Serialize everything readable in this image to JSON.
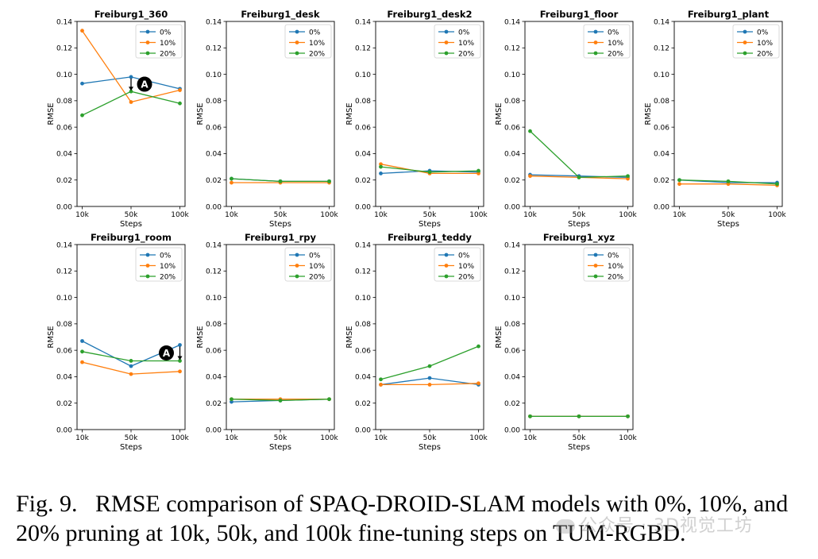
{
  "chart_data": [
    {
      "type": "line",
      "title": "Freiburg1_360",
      "xlabel": "Steps",
      "ylabel": "RMSE",
      "categories": [
        "10k",
        "50k",
        "100k"
      ],
      "ylim": [
        0,
        0.14
      ],
      "yticks": [
        "0.00",
        "0.02",
        "0.04",
        "0.06",
        "0.08",
        "0.10",
        "0.12",
        "0.14"
      ],
      "legend": "top-right",
      "series": [
        {
          "name": "0%",
          "color": "#1f77b4",
          "values": [
            0.093,
            0.098,
            0.089
          ]
        },
        {
          "name": "10%",
          "color": "#ff7f0e",
          "values": [
            0.133,
            0.079,
            0.088
          ]
        },
        {
          "name": "20%",
          "color": "#2ca02c",
          "values": [
            0.069,
            0.087,
            0.078
          ]
        }
      ],
      "annotation": {
        "label": "A",
        "category": "50k",
        "from": 0.098,
        "to": 0.087
      }
    },
    {
      "type": "line",
      "title": "Freiburg1_desk",
      "xlabel": "Steps",
      "ylabel": "RMSE",
      "categories": [
        "10k",
        "50k",
        "100k"
      ],
      "ylim": [
        0,
        0.14
      ],
      "yticks": [
        "0.00",
        "0.02",
        "0.04",
        "0.06",
        "0.08",
        "0.10",
        "0.12",
        "0.14"
      ],
      "legend": "top-right",
      "series": [
        {
          "name": "0%",
          "color": "#1f77b4",
          "values": [
            0.021,
            0.019,
            0.019
          ]
        },
        {
          "name": "10%",
          "color": "#ff7f0e",
          "values": [
            0.018,
            0.018,
            0.018
          ]
        },
        {
          "name": "20%",
          "color": "#2ca02c",
          "values": [
            0.021,
            0.019,
            0.019
          ]
        }
      ]
    },
    {
      "type": "line",
      "title": "Freiburg1_desk2",
      "xlabel": "Steps",
      "ylabel": "RMSE",
      "categories": [
        "10k",
        "50k",
        "100k"
      ],
      "ylim": [
        0,
        0.14
      ],
      "yticks": [
        "0.00",
        "0.02",
        "0.04",
        "0.06",
        "0.08",
        "0.10",
        "0.12",
        "0.14"
      ],
      "legend": "top-right",
      "series": [
        {
          "name": "0%",
          "color": "#1f77b4",
          "values": [
            0.025,
            0.027,
            0.026
          ]
        },
        {
          "name": "10%",
          "color": "#ff7f0e",
          "values": [
            0.032,
            0.025,
            0.025
          ]
        },
        {
          "name": "20%",
          "color": "#2ca02c",
          "values": [
            0.03,
            0.026,
            0.027
          ]
        }
      ]
    },
    {
      "type": "line",
      "title": "Freiburg1_floor",
      "xlabel": "Steps",
      "ylabel": "RMSE",
      "categories": [
        "10k",
        "50k",
        "100k"
      ],
      "ylim": [
        0,
        0.14
      ],
      "yticks": [
        "0.00",
        "0.02",
        "0.04",
        "0.06",
        "0.08",
        "0.10",
        "0.12",
        "0.14"
      ],
      "legend": "top-right",
      "series": [
        {
          "name": "0%",
          "color": "#1f77b4",
          "values": [
            0.024,
            0.023,
            0.022
          ]
        },
        {
          "name": "10%",
          "color": "#ff7f0e",
          "values": [
            0.023,
            0.022,
            0.021
          ]
        },
        {
          "name": "20%",
          "color": "#2ca02c",
          "values": [
            0.057,
            0.022,
            0.023
          ]
        }
      ]
    },
    {
      "type": "line",
      "title": "Freiburg1_plant",
      "xlabel": "Steps",
      "ylabel": "RMSE",
      "categories": [
        "10k",
        "50k",
        "100k"
      ],
      "ylim": [
        0,
        0.14
      ],
      "yticks": [
        "0.00",
        "0.02",
        "0.04",
        "0.06",
        "0.08",
        "0.10",
        "0.12",
        "0.14"
      ],
      "legend": "top-right",
      "series": [
        {
          "name": "0%",
          "color": "#1f77b4",
          "values": [
            0.02,
            0.018,
            0.018
          ]
        },
        {
          "name": "10%",
          "color": "#ff7f0e",
          "values": [
            0.017,
            0.017,
            0.016
          ]
        },
        {
          "name": "20%",
          "color": "#2ca02c",
          "values": [
            0.02,
            0.019,
            0.017
          ]
        }
      ]
    },
    {
      "type": "line",
      "title": "Freiburg1_room",
      "xlabel": "Steps",
      "ylabel": "RMSE",
      "categories": [
        "10k",
        "50k",
        "100k"
      ],
      "ylim": [
        0,
        0.14
      ],
      "yticks": [
        "0.00",
        "0.02",
        "0.04",
        "0.06",
        "0.08",
        "0.10",
        "0.12",
        "0.14"
      ],
      "legend": "top-right",
      "series": [
        {
          "name": "0%",
          "color": "#1f77b4",
          "values": [
            0.067,
            0.048,
            0.064
          ]
        },
        {
          "name": "10%",
          "color": "#ff7f0e",
          "values": [
            0.051,
            0.042,
            0.044
          ]
        },
        {
          "name": "20%",
          "color": "#2ca02c",
          "values": [
            0.059,
            0.052,
            0.052
          ]
        }
      ],
      "annotation": {
        "label": "A",
        "category": "100k",
        "from": 0.064,
        "to": 0.052
      }
    },
    {
      "type": "line",
      "title": "Freiburg1_rpy",
      "xlabel": "Steps",
      "ylabel": "RMSE",
      "categories": [
        "10k",
        "50k",
        "100k"
      ],
      "ylim": [
        0,
        0.14
      ],
      "yticks": [
        "0.00",
        "0.02",
        "0.04",
        "0.06",
        "0.08",
        "0.10",
        "0.12",
        "0.14"
      ],
      "legend": "top-right",
      "series": [
        {
          "name": "0%",
          "color": "#1f77b4",
          "values": [
            0.021,
            0.022,
            0.023
          ]
        },
        {
          "name": "10%",
          "color": "#ff7f0e",
          "values": [
            0.023,
            0.023,
            0.023
          ]
        },
        {
          "name": "20%",
          "color": "#2ca02c",
          "values": [
            0.023,
            0.022,
            0.023
          ]
        }
      ]
    },
    {
      "type": "line",
      "title": "Freiburg1_teddy",
      "xlabel": "Steps",
      "ylabel": "RMSE",
      "categories": [
        "10k",
        "50k",
        "100k"
      ],
      "ylim": [
        0,
        0.14
      ],
      "yticks": [
        "0.00",
        "0.02",
        "0.04",
        "0.06",
        "0.08",
        "0.10",
        "0.12",
        "0.14"
      ],
      "legend": "top-right",
      "series": [
        {
          "name": "0%",
          "color": "#1f77b4",
          "values": [
            0.034,
            0.039,
            0.034
          ]
        },
        {
          "name": "10%",
          "color": "#ff7f0e",
          "values": [
            0.034,
            0.034,
            0.035
          ]
        },
        {
          "name": "20%",
          "color": "#2ca02c",
          "values": [
            0.038,
            0.048,
            0.063
          ]
        }
      ]
    },
    {
      "type": "line",
      "title": "Freiburg1_xyz",
      "xlabel": "Steps",
      "ylabel": "RMSE",
      "categories": [
        "10k",
        "50k",
        "100k"
      ],
      "ylim": [
        0,
        0.14
      ],
      "yticks": [
        "0.00",
        "0.02",
        "0.04",
        "0.06",
        "0.08",
        "0.10",
        "0.12",
        "0.14"
      ],
      "legend": "top-right",
      "series": [
        {
          "name": "0%",
          "color": "#1f77b4",
          "values": [
            0.01,
            0.01,
            0.01
          ]
        },
        {
          "name": "10%",
          "color": "#ff7f0e",
          "values": [
            0.01,
            0.01,
            0.01
          ]
        },
        {
          "name": "20%",
          "color": "#2ca02c",
          "values": [
            0.01,
            0.01,
            0.01
          ]
        }
      ]
    }
  ],
  "caption": {
    "label": "Fig. 9.",
    "text": "RMSE comparison of SPAQ-DROID-SLAM models with 0%, 10%, and 20% pruning at 10k, 50k, and 100k fine-tuning steps on TUM-RGBD."
  },
  "watermark": "公众号 · 3D视觉工坊"
}
